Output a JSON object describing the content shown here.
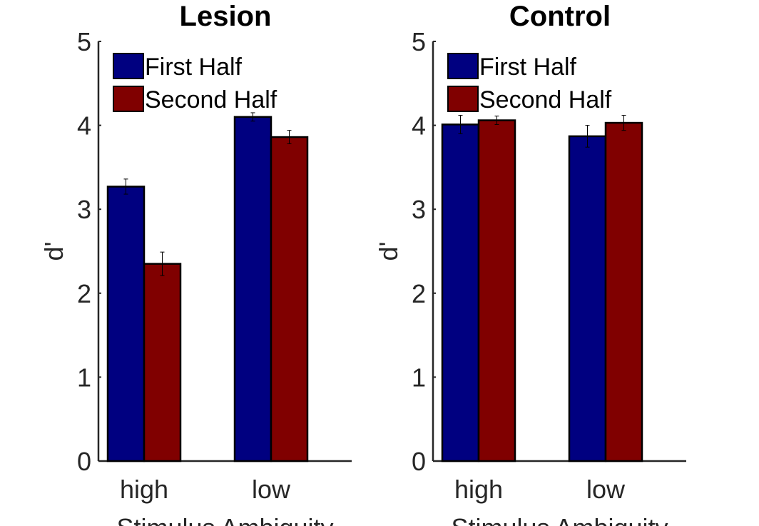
{
  "chart_data": [
    {
      "type": "bar",
      "title": "Lesion",
      "xlabel": "Stimulus Ambiguity",
      "ylabel": "d'",
      "categories": [
        "high",
        "low"
      ],
      "ylim": [
        0,
        5
      ],
      "yticks": [
        "0",
        "1",
        "2",
        "3",
        "4",
        "5"
      ],
      "series": [
        {
          "name": "First Half",
          "color": "#000080",
          "values": [
            3.27,
            4.1
          ],
          "errors": [
            0.09,
            0.05
          ]
        },
        {
          "name": "Second Half",
          "color": "#800000",
          "values": [
            2.35,
            3.86
          ],
          "errors": [
            0.14,
            0.08
          ]
        }
      ],
      "legend": "top-left",
      "grid": false
    },
    {
      "type": "bar",
      "title": "Control",
      "xlabel": "Stimulus Ambiguity",
      "ylabel": "d'",
      "categories": [
        "high",
        "low"
      ],
      "ylim": [
        0,
        5
      ],
      "yticks": [
        "0",
        "1",
        "2",
        "3",
        "4",
        "5"
      ],
      "series": [
        {
          "name": "First Half",
          "color": "#000080",
          "values": [
            4.01,
            3.87
          ],
          "errors": [
            0.11,
            0.13
          ]
        },
        {
          "name": "Second Half",
          "color": "#800000",
          "values": [
            4.06,
            4.03
          ],
          "errors": [
            0.05,
            0.09
          ]
        }
      ],
      "legend": "top-left",
      "grid": false
    }
  ]
}
